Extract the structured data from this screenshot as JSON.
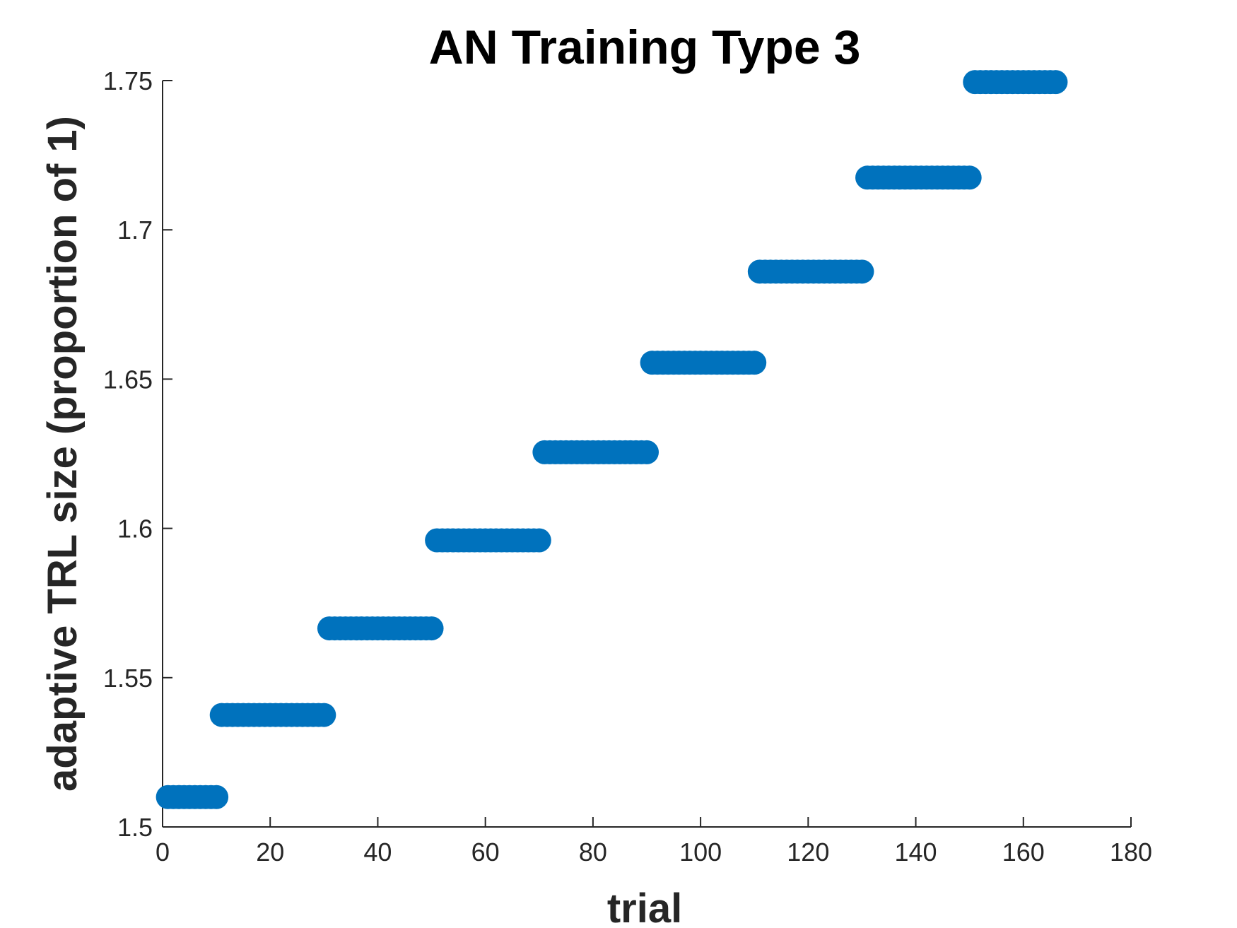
{
  "chart_data": {
    "type": "scatter",
    "title": "AN Training Type 3",
    "xlabel": "trial",
    "ylabel": "adaptive TRL size (proportion of 1)",
    "xlim": [
      0,
      180
    ],
    "ylim": [
      1.5,
      1.75
    ],
    "xticks": [
      "0",
      "20",
      "40",
      "60",
      "80",
      "100",
      "120",
      "140",
      "160",
      "180"
    ],
    "yticks": [
      "1.5",
      "1.55",
      "1.6",
      "1.65",
      "1.7",
      "1.75"
    ],
    "grid": false,
    "box": false,
    "marker_color": "#0072BD",
    "series": [
      {
        "segments": [
          {
            "x_start": 1,
            "x_end": 10,
            "y": 1.51
          },
          {
            "x_start": 11,
            "x_end": 30,
            "y": 1.5375
          },
          {
            "x_start": 31,
            "x_end": 50,
            "y": 1.5665
          },
          {
            "x_start": 51,
            "x_end": 70,
            "y": 1.596
          },
          {
            "x_start": 71,
            "x_end": 90,
            "y": 1.6255
          },
          {
            "x_start": 91,
            "x_end": 110,
            "y": 1.6555
          },
          {
            "x_start": 111,
            "x_end": 130,
            "y": 1.686
          },
          {
            "x_start": 131,
            "x_end": 150,
            "y": 1.7175
          },
          {
            "x_start": 151,
            "x_end": 166,
            "y": 1.7495
          }
        ]
      }
    ]
  }
}
